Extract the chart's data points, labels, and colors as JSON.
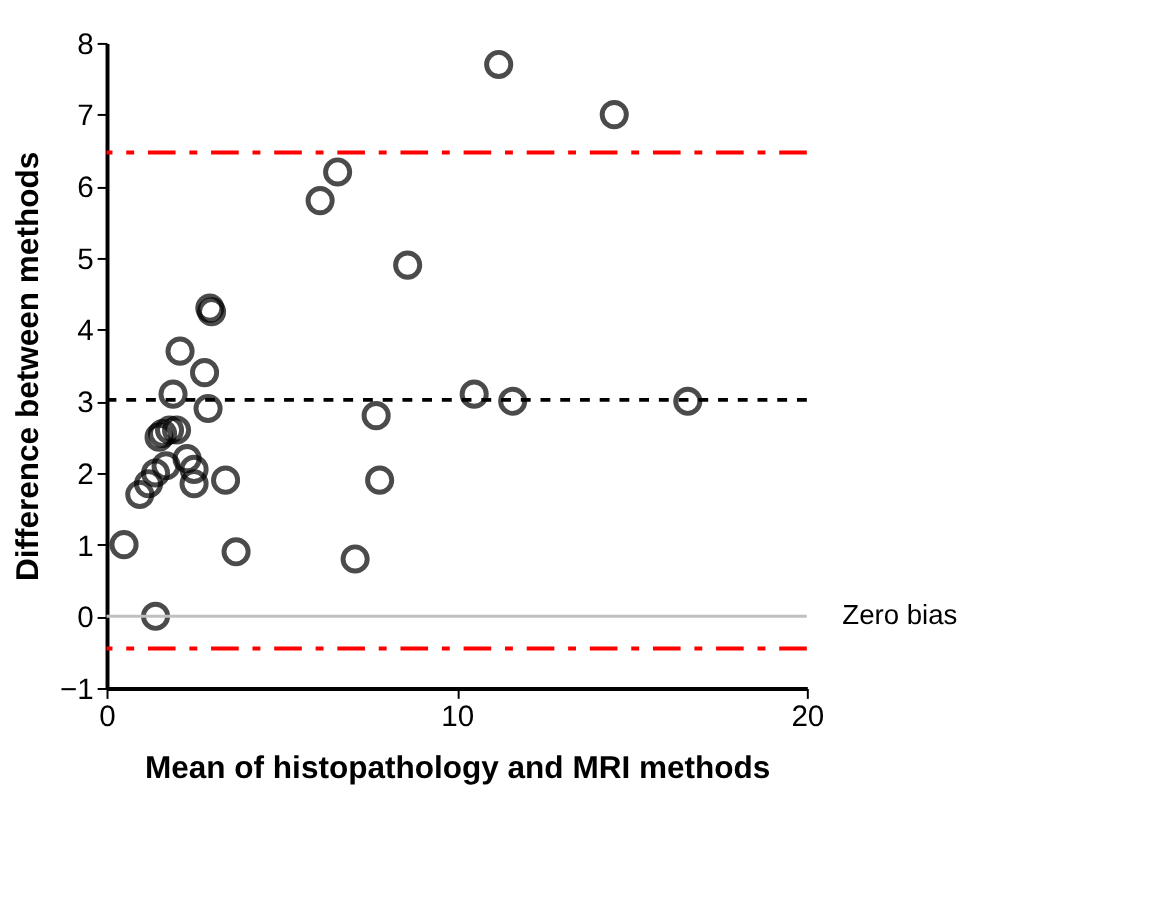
{
  "chart_data": {
    "type": "scatter",
    "xlabel": "Mean of histopathology and MRI methods",
    "ylabel": "Difference between methods",
    "series": [
      {
        "color": "#000000",
        "marker": "circle",
        "x": [
          11.2,
          14.5,
          6.6,
          6.1,
          8.6,
          10.5,
          11.6,
          16.6,
          7.7,
          7.8,
          7.1,
          2.95,
          3.0,
          2.1,
          2.8,
          1.9,
          2.9,
          1.6,
          1.8,
          1.5,
          2.0,
          2.3,
          1.7,
          1.4,
          1.2,
          0.95,
          2.5,
          2.5,
          3.4,
          0.5,
          3.7,
          1.4
        ],
        "values": [
          7.7,
          7.0,
          6.2,
          5.8,
          4.9,
          3.1,
          3.0,
          3.0,
          2.8,
          1.9,
          0.8,
          4.3,
          4.25,
          3.7,
          3.4,
          3.1,
          2.9,
          2.55,
          2.6,
          2.5,
          2.6,
          2.2,
          2.1,
          2.0,
          1.85,
          1.7,
          2.05,
          1.85,
          1.9,
          1.0,
          0.9,
          0.0
        ]
      }
    ],
    "xlim": [
      0,
      20
    ],
    "xticks": [
      0,
      10,
      20
    ],
    "ylim": [
      -1,
      8
    ],
    "yticks": [
      -1,
      0,
      1,
      2,
      3,
      4,
      5,
      6,
      7,
      8
    ],
    "ref_lines": [
      {
        "axis": "y",
        "value": 6.47,
        "color": "#ff0000",
        "line_style": "dashed"
      },
      {
        "axis": "y",
        "value": 3.02,
        "color": "#000000",
        "line_style": "dotted"
      },
      {
        "axis": "y",
        "value": 0,
        "label": "Zero bias",
        "color": "#c0c0c0",
        "line_style": "solid"
      },
      {
        "axis": "y",
        "value": -0.45,
        "color": "#ff0000",
        "line_style": "dashed"
      }
    ],
    "grid": false
  }
}
